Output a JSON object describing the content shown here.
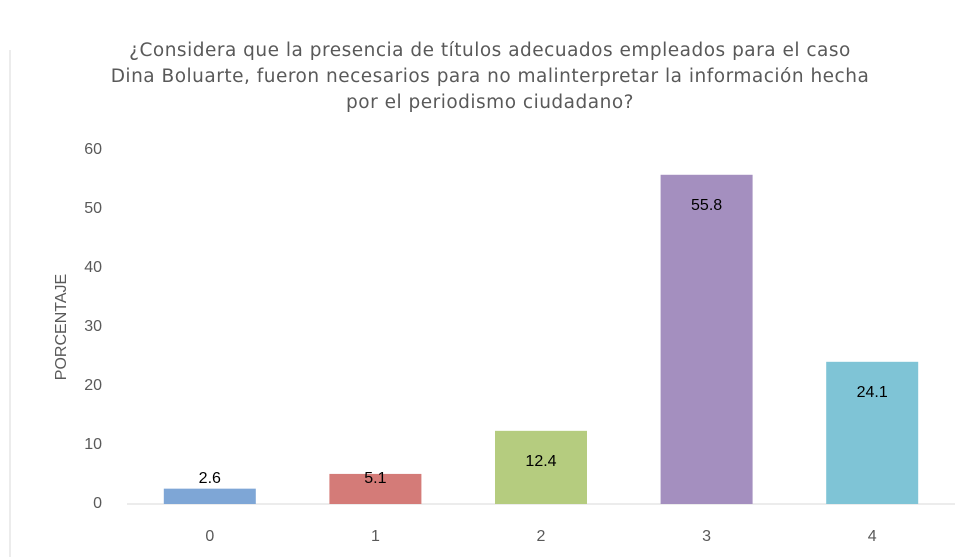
{
  "chart_data": {
    "type": "bar",
    "title": "¿Considera que la presencia de títulos adecuados empleados para el caso Dina Boluarte, fueron necesarios para no malinterpretar la información hecha por el periodismo ciudadano?",
    "y_label": "PORCENTAJE",
    "categories": [
      "0",
      "1",
      "2",
      "3",
      "4"
    ],
    "values": [
      2.6,
      5.1,
      12.4,
      55.8,
      24.1
    ],
    "colors": [
      "#7ea6d6",
      "#d47b78",
      "#b5cc7f",
      "#a48fbf",
      "#7fc4d6"
    ],
    "ylim": [
      0,
      60
    ],
    "yticks": [
      0,
      10,
      20,
      30,
      40,
      50,
      60
    ],
    "grid": false
  }
}
